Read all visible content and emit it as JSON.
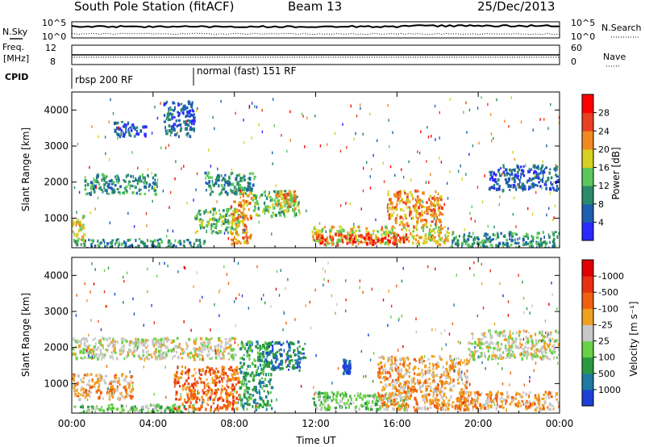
{
  "header": {
    "title": "South Pole Station (fitACF)",
    "beam": "Beam 13",
    "date": "25/Dec/2013"
  },
  "status_panels": {
    "nsky_label": "N.Sky",
    "nsky_ticks": [
      "10^5",
      "10^0"
    ],
    "nsearch_label": "N.Search",
    "freq_label_top": "Freq.",
    "freq_label_bottom": "[MHz]",
    "freq_ticks": [
      "12",
      "8"
    ],
    "nave_label": "Nave",
    "nave_ticks": [
      "60",
      "0"
    ],
    "nsearch_ticks": [
      "10^5",
      "10^0"
    ],
    "cpid_label": "CPID",
    "cpid_segments": [
      "rbsp 200 RF",
      "normal (fast) 151 RF"
    ]
  },
  "chart_data": [
    {
      "type": "heatmap",
      "name": "power",
      "ylabel": "Slant Range [km]",
      "xlabel": "",
      "x_ticks": [
        "00:00",
        "04:00",
        "08:00",
        "12:00",
        "16:00",
        "20:00",
        "00:00"
      ],
      "y_ticks": [
        "1000",
        "2000",
        "3000",
        "4000"
      ],
      "xlim_hours": [
        0,
        24
      ],
      "ylim_km": [
        180,
        4500
      ],
      "colorbar_label": "Power [dB]",
      "colorbar_ticks": [
        "4",
        "8",
        "12",
        "16",
        "20",
        "24",
        "28"
      ],
      "colorbar_colors": [
        "#2a2aff",
        "#1d5fb0",
        "#2a8a6a",
        "#5cc85c",
        "#d8d020",
        "#f08a20",
        "#e84020",
        "#ff0000"
      ],
      "echo_regions": [
        {
          "t0": 0.0,
          "t1": 0.6,
          "r0": 300,
          "r1": 1100,
          "level": 4
        },
        {
          "t0": 0.0,
          "t1": 6.5,
          "r0": 180,
          "r1": 450,
          "level": 2
        },
        {
          "t0": 0.6,
          "t1": 4.2,
          "r0": 1700,
          "r1": 2250,
          "level": 2
        },
        {
          "t0": 2.0,
          "t1": 3.6,
          "r0": 3300,
          "r1": 3700,
          "level": 1
        },
        {
          "t0": 4.5,
          "t1": 6.0,
          "r0": 3300,
          "r1": 4300,
          "level": 1
        },
        {
          "t0": 6.0,
          "t1": 8.2,
          "r0": 600,
          "r1": 1300,
          "level": 3
        },
        {
          "t0": 7.8,
          "t1": 8.8,
          "r0": 300,
          "r1": 1800,
          "level": 5
        },
        {
          "t0": 6.5,
          "t1": 9.0,
          "r0": 1700,
          "r1": 2300,
          "level": 2
        },
        {
          "t0": 8.8,
          "t1": 11.2,
          "r0": 1100,
          "r1": 1800,
          "level": 3
        },
        {
          "t0": 10.0,
          "t1": 11.0,
          "r0": 1300,
          "r1": 1800,
          "level": 5
        },
        {
          "t0": 11.8,
          "t1": 18.5,
          "r0": 300,
          "r1": 800,
          "level": 4
        },
        {
          "t0": 12.0,
          "t1": 16.5,
          "r0": 300,
          "r1": 600,
          "level": 6
        },
        {
          "t0": 15.5,
          "t1": 18.2,
          "r0": 800,
          "r1": 1800,
          "level": 5
        },
        {
          "t0": 18.5,
          "t1": 24.0,
          "r0": 180,
          "r1": 650,
          "level": 2
        },
        {
          "t0": 20.5,
          "t1": 24.0,
          "r0": 1800,
          "r1": 2500,
          "level": 1
        }
      ]
    },
    {
      "type": "heatmap",
      "name": "velocity",
      "ylabel": "Slant Range [km]",
      "xlabel": "Time UT",
      "x_ticks": [
        "00:00",
        "04:00",
        "08:00",
        "12:00",
        "16:00",
        "20:00",
        "00:00"
      ],
      "y_ticks": [
        "1000",
        "2000",
        "3000",
        "4000"
      ],
      "xlim_hours": [
        0,
        24
      ],
      "ylim_km": [
        180,
        4500
      ],
      "colorbar_label": "Velocity [m s⁻¹]",
      "colorbar_ticks": [
        "1000",
        "500",
        "100",
        "25",
        "-25",
        "-100",
        "-500",
        "-1000"
      ],
      "colorbar_colors": [
        "#1c3fd8",
        "#1d7aa0",
        "#2a9a40",
        "#66d244",
        "#c8c8c8",
        "#f0a020",
        "#f06010",
        "#e83010",
        "#e00000"
      ],
      "echo_regions": [
        {
          "t0": 0.0,
          "t1": 4.5,
          "r0": 1700,
          "r1": 2300,
          "level": 4
        },
        {
          "t0": 0.0,
          "t1": 3.0,
          "r0": 600,
          "r1": 1300,
          "level": 5
        },
        {
          "t0": 0.0,
          "t1": 6.0,
          "r0": 180,
          "r1": 450,
          "level": 3
        },
        {
          "t0": 4.0,
          "t1": 8.0,
          "r0": 1700,
          "r1": 2300,
          "level": 4
        },
        {
          "t0": 5.0,
          "t1": 8.2,
          "r0": 300,
          "r1": 1500,
          "level": 6
        },
        {
          "t0": 8.2,
          "t1": 9.8,
          "r0": 300,
          "r1": 2200,
          "level": 2
        },
        {
          "t0": 9.5,
          "t1": 11.5,
          "r0": 1400,
          "r1": 2200,
          "level": 1
        },
        {
          "t0": 11.8,
          "t1": 16.5,
          "r0": 300,
          "r1": 800,
          "level": 3
        },
        {
          "t0": 13.3,
          "t1": 13.7,
          "r0": 1300,
          "r1": 1700,
          "level": 0
        },
        {
          "t0": 15.0,
          "t1": 19.5,
          "r0": 300,
          "r1": 1800,
          "level": 5
        },
        {
          "t0": 19.0,
          "t1": 24.0,
          "r0": 300,
          "r1": 800,
          "level": 5
        },
        {
          "t0": 19.5,
          "t1": 24.0,
          "r0": 1700,
          "r1": 2500,
          "level": 4
        }
      ]
    }
  ]
}
